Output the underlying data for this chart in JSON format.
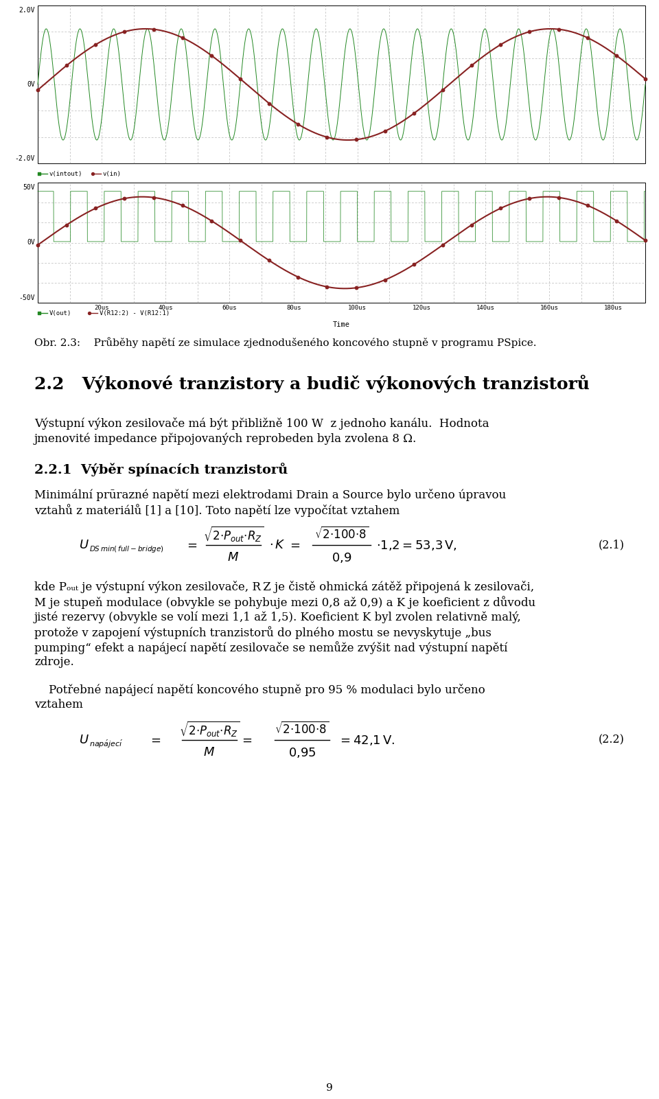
{
  "page_bg": "#ffffff",
  "fig_width": 9.6,
  "fig_height": 16.01,
  "dpi": 100,
  "caption": "Obr. 2.3:    Průběhy napětí ze simulace zjednodušeného koncového stupně v programu PSpice.",
  "section_title": "2.2   Výkonové tranzistory a budič výkonových tranzistorů",
  "para1_line1": "Výstupní výkon zesilovače má být přibližně 100 W  z jednoho kanálu.  Hodnota",
  "para1_line2": "jmenovité impedance připojovaných reprobeden byla zvolena 8 Ω.",
  "subsection_title": "2.2.1  Výběr spínacích tranzistorů",
  "para2_line1": "Minimální prūrazné napětí mezi elektrodami Drain a Source bylo určeno úpravou",
  "para2_line2": "vztahů z materiálů [1] a [10]. Toto napětí lze vypočítat vztahem",
  "formula_label": "(2.1)",
  "para3_line1": "kde Pₒᵤₜ je výstupní výkon zesilovače, R Z je čistě ohmická zátěž připojená k zesilovači,",
  "para3_line2": "M je stupeň modulace (obvykle se pohybuje mezi 0,8 až 0,9) a K je koeficient z důvodu",
  "para3_line3": "jisté rezervy (obvykle se volí mezi 1,1 až 1,5). Koeficient K byl zvolen relativně malý,",
  "para3_line4": "protože v zapojení výstupních tranzistorů do plného mostu se nevyskytuje „bus",
  "para3_line5": "pumping“ efekt a napájecí napětí zesilovače se nemůže zvýšit nad výstupní napětí",
  "para3_line6": "zdroje.",
  "para4_line1": "    Potřebné napájecí napětí koncového stupně pro 95 % modulaci bylo určeno",
  "para4_line2": "vztahem",
  "formula2_label": "(2.2)",
  "page_number": "9",
  "chart_bg": "#ffffff",
  "chart_border": "#000000",
  "grid_color": "#888888",
  "green_color": "#228822",
  "red_color": "#882222"
}
